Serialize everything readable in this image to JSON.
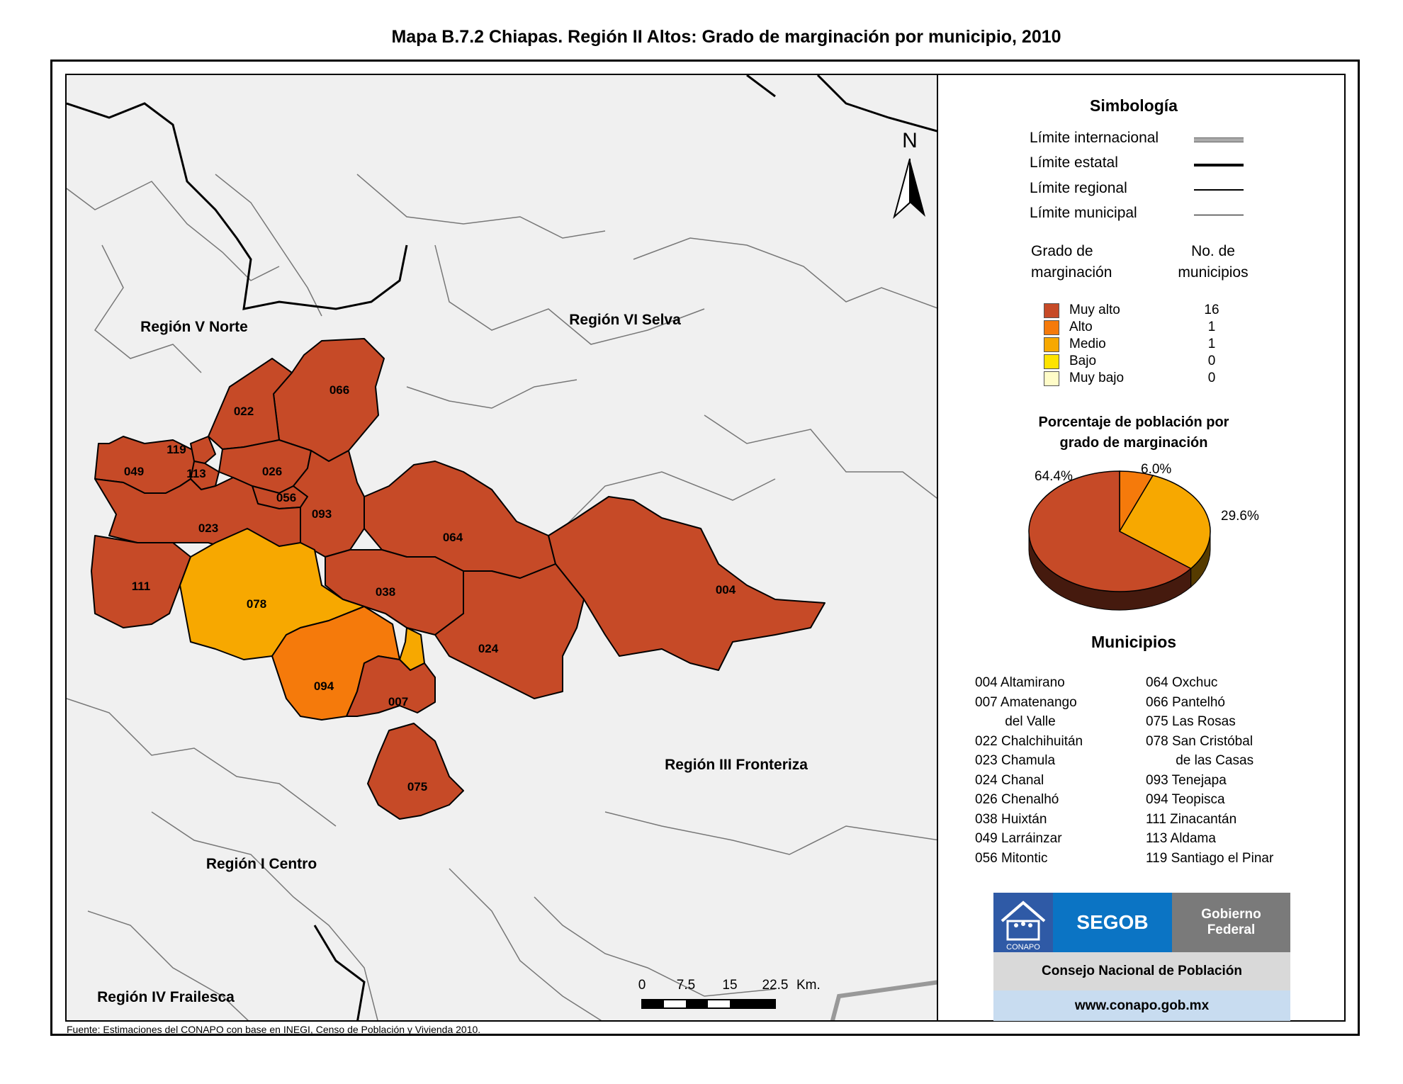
{
  "title": "Mapa B.7.2 Chiapas. Región II Altos: Grado de marginación por municipio, 2010",
  "source": "Fuente: Estimaciones del CONAPO con base en INEGI, Censo de Población y Vivienda 2010.",
  "north_label": "N",
  "regions": {
    "norte": "Región V Norte",
    "selva": "Región VI Selva",
    "fronteriza": "Región III Fronteriza",
    "centro": "Región I Centro",
    "frailesca": "Región IV Frailesca"
  },
  "map_labels": {
    "m004": "004",
    "m007": "007",
    "m022": "022",
    "m023": "023",
    "m024": "024",
    "m026": "026",
    "m038": "038",
    "m049": "049",
    "m056": "056",
    "m064": "064",
    "m066": "066",
    "m075": "075",
    "m078": "078",
    "m093": "093",
    "m094": "094",
    "m111": "111",
    "m113": "113",
    "m119": "119"
  },
  "scale": {
    "t0": "0",
    "t1": "7.5",
    "t2": "15",
    "t3": "22.5",
    "unit": "Km."
  },
  "legend": {
    "title": "Simbología",
    "lines": {
      "internacional": "Límite internacional",
      "estatal": "Límite estatal",
      "regional": "Límite regional",
      "municipal": "Límite municipal"
    },
    "col1_a": "Grado de",
    "col1_b": "marginación",
    "col2_a": "No. de",
    "col2_b": "municipios",
    "classes": [
      {
        "label": "Muy alto",
        "count": "16",
        "color": "#c64a27"
      },
      {
        "label": "Alto",
        "count": "1",
        "color": "#f57a0b"
      },
      {
        "label": "Medio",
        "count": "1",
        "color": "#f7a800"
      },
      {
        "label": "Bajo",
        "count": "0",
        "color": "#fee300"
      },
      {
        "label": "Muy bajo",
        "count": "0",
        "color": "#fffcc8"
      }
    ]
  },
  "pie": {
    "title_a": "Porcentaje de población por",
    "title_b": "grado de marginación",
    "slices": [
      {
        "class": "Muy alto",
        "value": 64.4,
        "label": "64.4%",
        "color": "#c64a27"
      },
      {
        "class": "Alto",
        "value": 6.0,
        "label": "6.0%",
        "color": "#f57a0b"
      },
      {
        "class": "Medio",
        "value": 29.6,
        "label": "29.6%",
        "color": "#f7a800"
      }
    ]
  },
  "municipios": {
    "title": "Municipios",
    "col1": "004 Altamirano\n007 Amatenango\n        del Valle\n022 Chalchihuitán\n023 Chamula\n024 Chanal\n026 Chenalhó\n038 Huixtán\n049 Larráinzar\n056 Mitontic",
    "col2": "064 Oxchuc\n066 Pantelhó\n075 Las Rosas\n078 San Cristóbal\n        de las Casas\n093 Tenejapa\n094 Teopisca\n111 Zinacantán\n113 Aldama\n119 Santiago el Pinar"
  },
  "logos": {
    "conapo": "CONAPO",
    "segob": "SEGOB",
    "gobierno_a": "Gobierno",
    "gobierno_b": "Federal",
    "consejo": "Consejo Nacional de Población",
    "url": "www.conapo.gob.mx"
  }
}
